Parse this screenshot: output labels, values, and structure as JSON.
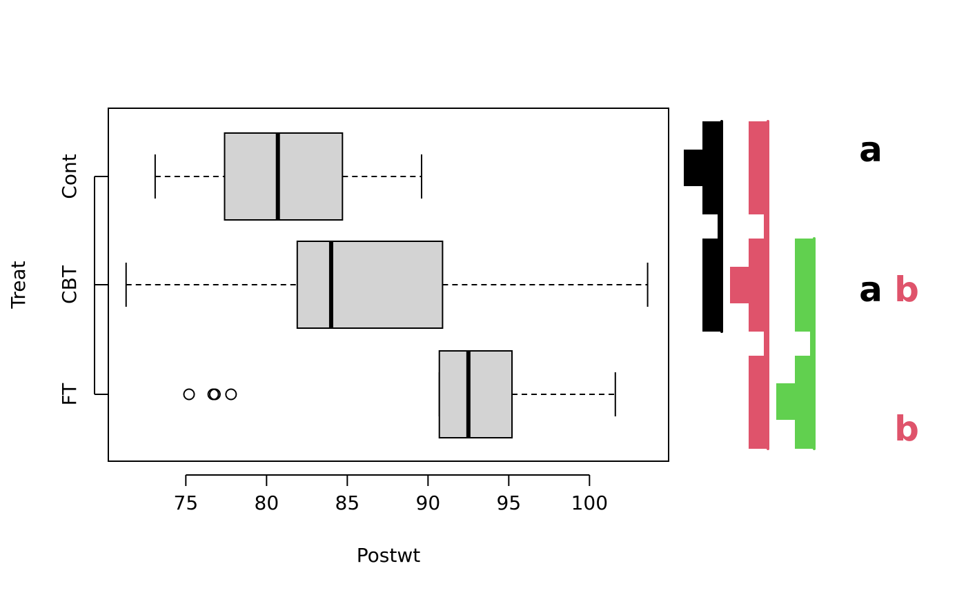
{
  "chart_data": {
    "type": "box",
    "orientation": "horizontal",
    "xlabel": "Postwt",
    "ylabel": "Treat",
    "xlim": [
      70.2,
      104.9
    ],
    "xticks": [
      "75",
      "80",
      "85",
      "90",
      "95",
      "100"
    ],
    "xtick_values": [
      75,
      80,
      85,
      90,
      95,
      100
    ],
    "categories": [
      "Cont",
      "CBT",
      "FT"
    ],
    "boxes": [
      {
        "group": "Cont",
        "whisker_low": 73.1,
        "q1": 77.4,
        "median": 80.7,
        "q3": 84.7,
        "whisker_high": 89.6,
        "outliers": []
      },
      {
        "group": "CBT",
        "whisker_low": 71.3,
        "q1": 81.9,
        "median": 84.0,
        "q3": 90.9,
        "whisker_high": 103.6,
        "outliers": []
      },
      {
        "group": "FT",
        "whisker_low": 90.7,
        "q1": 90.7,
        "median": 92.5,
        "q3": 95.2,
        "whisker_high": 101.6,
        "outliers": [
          75.2,
          76.7,
          76.8,
          77.8
        ]
      }
    ],
    "letter_groups": [
      {
        "letter": "a",
        "color": "#000000",
        "members": [
          "Cont",
          "CBT"
        ]
      },
      {
        "letter": "b",
        "color": "#DF536B",
        "members": [
          "CBT",
          "FT"
        ]
      }
    ],
    "group_letters": [
      {
        "group": "Cont",
        "letters": [
          "a"
        ]
      },
      {
        "group": "CBT",
        "letters": [
          "a",
          "b"
        ]
      },
      {
        "group": "FT",
        "letters": [
          "b"
        ]
      }
    ],
    "colors": {
      "box_fill": "#D3D3D3",
      "black": "#000000",
      "red": "#DF536B",
      "green": "#61D04F"
    }
  }
}
